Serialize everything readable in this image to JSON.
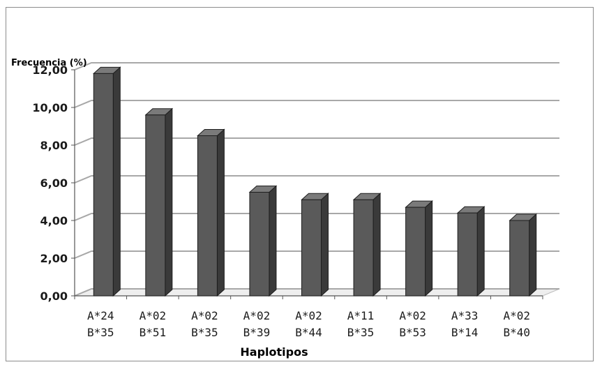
{
  "chart_data": {
    "type": "bar",
    "ylabel": "Frecuencia (%)",
    "xlabel": "Haplotipos",
    "categories": [
      [
        "A*24",
        "B*35"
      ],
      [
        "A*02",
        "B*51"
      ],
      [
        "A*02",
        "B*35"
      ],
      [
        "A*02",
        "B*39"
      ],
      [
        "A*02",
        "B*44"
      ],
      [
        "A*11",
        "B*35"
      ],
      [
        "A*02",
        "B*53"
      ],
      [
        "A*33",
        "B*14"
      ],
      [
        "A*02",
        "B*40"
      ]
    ],
    "values": [
      11.8,
      9.6,
      8.5,
      5.5,
      5.1,
      5.1,
      4.7,
      4.4,
      4.0
    ],
    "ylim": [
      0,
      12
    ],
    "yticks": [
      "0,00",
      "2,00",
      "4,00",
      "6,00",
      "8,00",
      "10,00",
      "12,00"
    ],
    "grid": true,
    "bar_color": "#5a5a5a",
    "legend": "none"
  }
}
